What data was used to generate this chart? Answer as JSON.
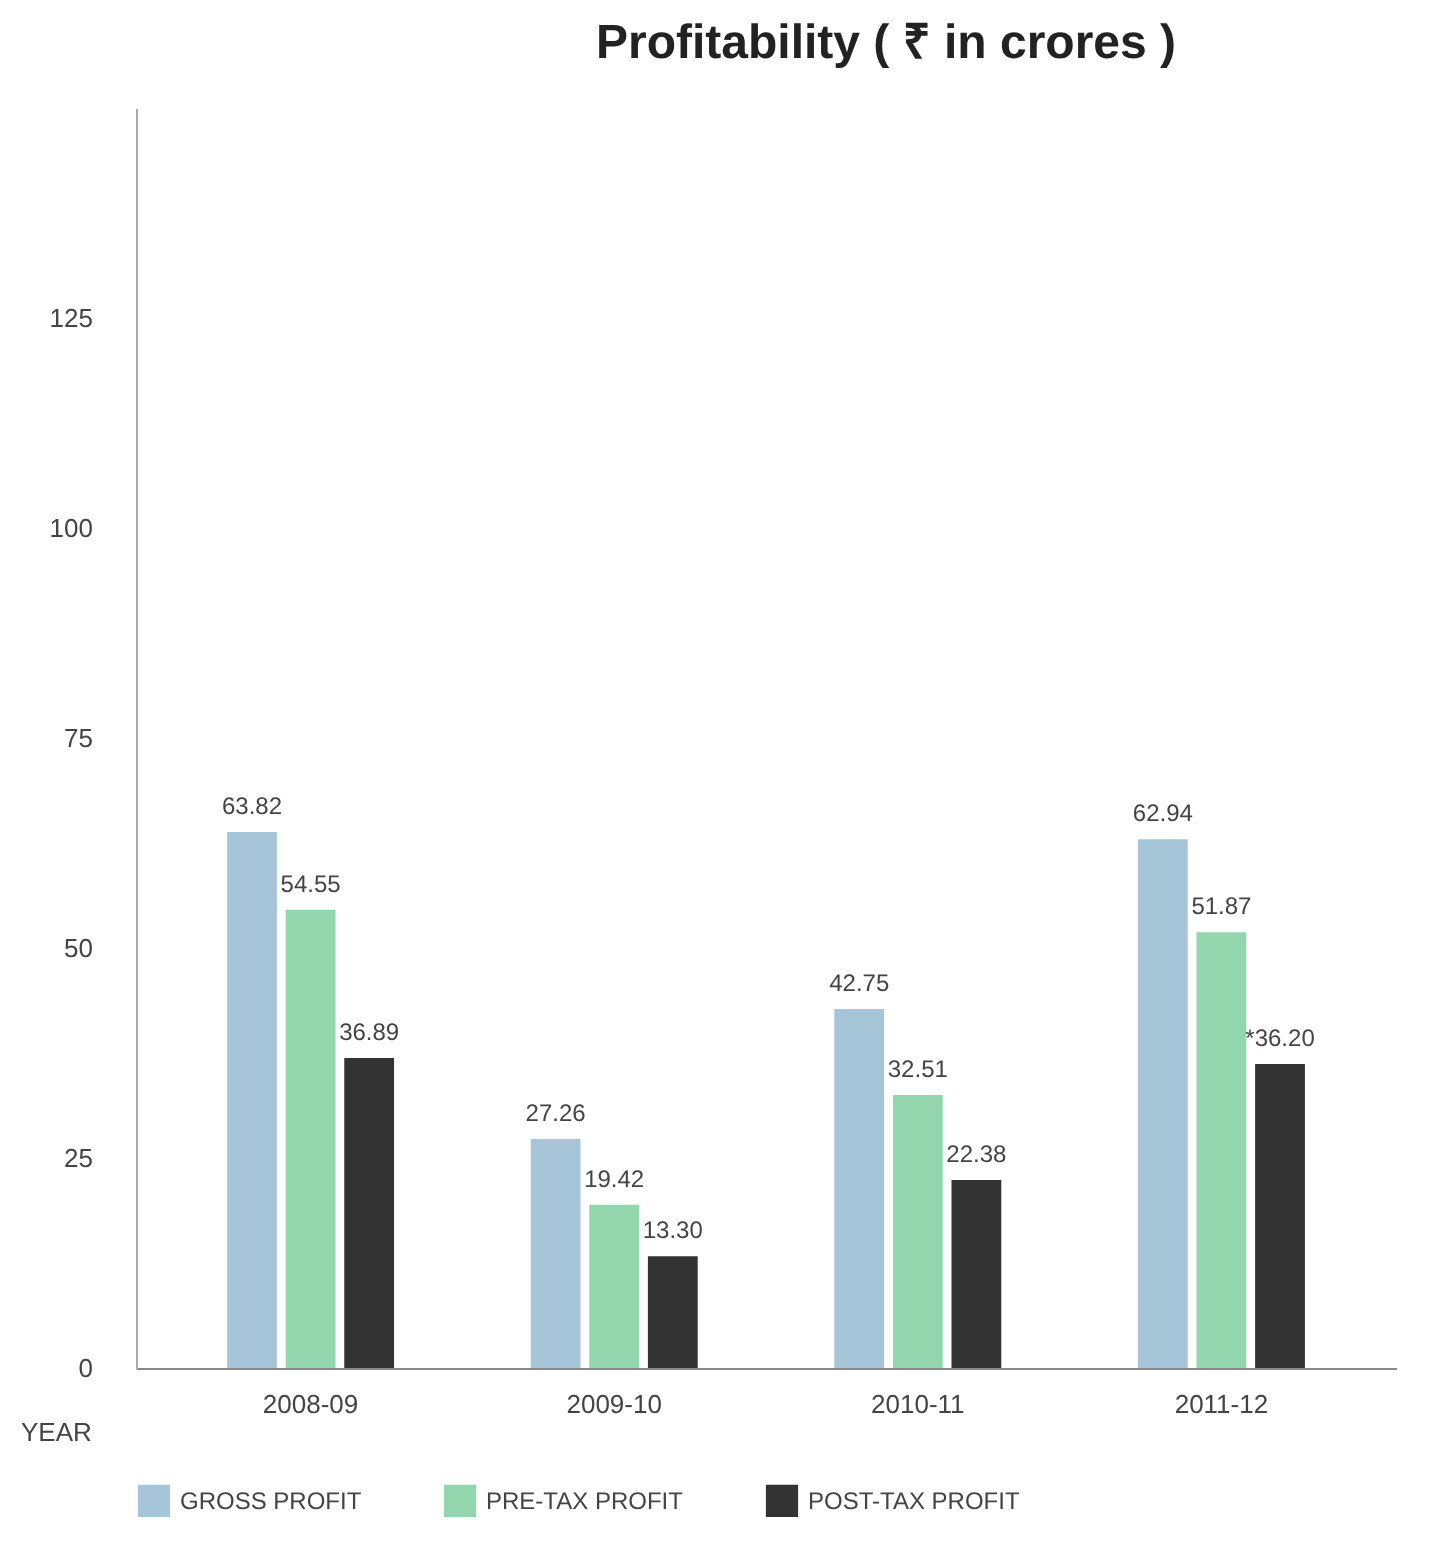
{
  "chart_data": {
    "type": "bar",
    "title": "Profitability ( ₹ in crores )",
    "xlabel": "YEAR",
    "categories": [
      "2008-09",
      "2009-10",
      "2010-11",
      "2011-12"
    ],
    "series": [
      {
        "name": "GROSS PROFIT",
        "color": "#a6c5d9",
        "values": [
          63.82,
          27.26,
          42.75,
          62.94
        ],
        "value_labels": [
          "63.82",
          "27.26",
          "42.75",
          "62.94"
        ]
      },
      {
        "name": "PRE-TAX PROFIT",
        "color": "#93d5ad",
        "values": [
          54.55,
          19.42,
          32.51,
          51.87
        ],
        "value_labels": [
          "54.55",
          "19.42",
          "32.51",
          "51.87"
        ]
      },
      {
        "name": "POST-TAX PROFIT",
        "color": "#333333",
        "values": [
          36.89,
          13.3,
          22.38,
          36.2
        ],
        "value_labels": [
          "36.89",
          "13.30",
          "22.38",
          "*36.20"
        ]
      }
    ],
    "ylim": [
      0,
      150
    ],
    "yticks": [
      0,
      25,
      50,
      75,
      100,
      125
    ],
    "grid": false,
    "legend": "bottom"
  }
}
